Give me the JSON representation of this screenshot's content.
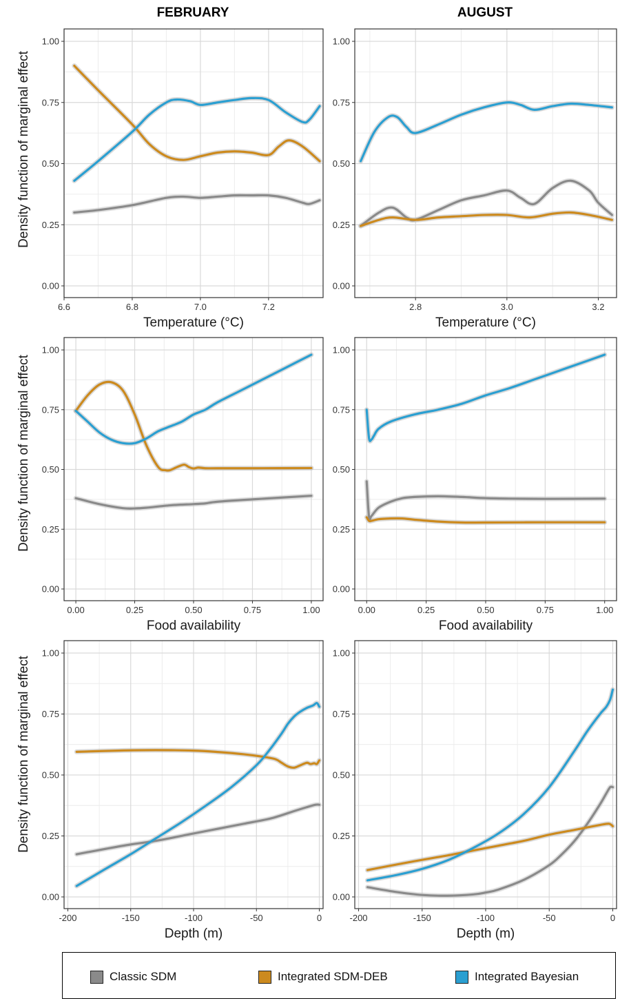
{
  "column_titles": [
    "FEBRUARY",
    "AUGUST"
  ],
  "ylabel": "Density function of marginal effect",
  "legend": [
    {
      "label": "Classic SDM",
      "color": "#8a8a8a",
      "icon": "gray-square"
    },
    {
      "label": "Integrated SDM-DEB",
      "color": "#cc8a1e",
      "icon": "orange-square"
    },
    {
      "label": "Integrated Bayesian",
      "color": "#2b9fd1",
      "icon": "blue-square"
    }
  ],
  "chart_data": [
    {
      "type": "line",
      "panel": "february-temperature",
      "xlabel": "Temperature (°C)",
      "xlim": [
        6.6,
        7.36
      ],
      "ylim": [
        0,
        1
      ],
      "xticks": [
        6.6,
        6.8,
        7.0,
        7.2
      ],
      "xtick_labels": [
        "6.6",
        "6.8",
        "7.0",
        "7.2"
      ],
      "yticks": [
        0,
        0.25,
        0.5,
        0.75,
        1
      ],
      "ytick_labels": [
        "0.00",
        "0.25",
        "0.50",
        "0.75",
        "1.00"
      ],
      "grid": true,
      "series": [
        {
          "name": "Classic SDM",
          "x": [
            6.63,
            6.7,
            6.8,
            6.9,
            6.95,
            7.0,
            7.05,
            7.1,
            7.15,
            7.2,
            7.25,
            7.3,
            7.32,
            7.35
          ],
          "y": [
            0.3,
            0.31,
            0.33,
            0.36,
            0.365,
            0.36,
            0.365,
            0.37,
            0.37,
            0.37,
            0.36,
            0.34,
            0.335,
            0.35
          ]
        },
        {
          "name": "Integrated SDM-DEB",
          "x": [
            6.63,
            6.7,
            6.8,
            6.85,
            6.9,
            6.95,
            7.0,
            7.05,
            7.1,
            7.15,
            7.2,
            7.23,
            7.26,
            7.3,
            7.35
          ],
          "y": [
            0.9,
            0.8,
            0.66,
            0.58,
            0.53,
            0.515,
            0.53,
            0.545,
            0.55,
            0.545,
            0.535,
            0.57,
            0.595,
            0.57,
            0.51
          ]
        },
        {
          "name": "Integrated Bayesian",
          "x": [
            6.63,
            6.7,
            6.8,
            6.85,
            6.9,
            6.93,
            6.97,
            7.0,
            7.05,
            7.1,
            7.15,
            7.2,
            7.25,
            7.3,
            7.32,
            7.35
          ],
          "y": [
            0.43,
            0.51,
            0.63,
            0.7,
            0.75,
            0.762,
            0.755,
            0.74,
            0.75,
            0.76,
            0.768,
            0.76,
            0.71,
            0.67,
            0.68,
            0.735
          ]
        }
      ]
    },
    {
      "type": "line",
      "panel": "august-temperature",
      "xlabel": "Temperature (°C)",
      "xlim": [
        2.667,
        3.24
      ],
      "ylim": [
        0,
        1
      ],
      "xticks": [
        2.8,
        3.0,
        3.2
      ],
      "xtick_labels": [
        "2.8",
        "3.0",
        "3.2"
      ],
      "yticks": [
        0,
        0.25,
        0.5,
        0.75,
        1
      ],
      "ytick_labels": [
        "0.00",
        "0.25",
        "0.50",
        "0.75",
        "1.00"
      ],
      "grid": true,
      "series": [
        {
          "name": "Classic SDM",
          "x": [
            2.68,
            2.72,
            2.75,
            2.78,
            2.8,
            2.85,
            2.9,
            2.95,
            3.0,
            3.03,
            3.06,
            3.1,
            3.14,
            3.18,
            3.2,
            3.23
          ],
          "y": [
            0.245,
            0.3,
            0.32,
            0.28,
            0.27,
            0.31,
            0.35,
            0.37,
            0.39,
            0.36,
            0.335,
            0.4,
            0.43,
            0.39,
            0.34,
            0.29
          ]
        },
        {
          "name": "Integrated SDM-DEB",
          "x": [
            2.68,
            2.72,
            2.75,
            2.8,
            2.85,
            2.9,
            2.95,
            3.0,
            3.05,
            3.1,
            3.14,
            3.18,
            3.23
          ],
          "y": [
            0.245,
            0.27,
            0.28,
            0.27,
            0.28,
            0.285,
            0.29,
            0.29,
            0.28,
            0.295,
            0.3,
            0.29,
            0.27
          ]
        },
        {
          "name": "Integrated Bayesian",
          "x": [
            2.68,
            2.71,
            2.74,
            2.76,
            2.78,
            2.8,
            2.85,
            2.9,
            2.95,
            3.0,
            3.03,
            3.06,
            3.1,
            3.14,
            3.18,
            3.23
          ],
          "y": [
            0.51,
            0.63,
            0.69,
            0.69,
            0.65,
            0.625,
            0.66,
            0.7,
            0.73,
            0.75,
            0.74,
            0.72,
            0.735,
            0.745,
            0.74,
            0.73
          ]
        }
      ]
    },
    {
      "type": "line",
      "panel": "february-food",
      "xlabel": "Food availability",
      "xlim": [
        -0.05,
        1.05
      ],
      "ylim": [
        0,
        1
      ],
      "xticks": [
        0,
        0.25,
        0.5,
        0.75,
        1
      ],
      "xtick_labels": [
        "0.00",
        "0.25",
        "0.50",
        "0.75",
        "1.00"
      ],
      "yticks": [
        0,
        0.25,
        0.5,
        0.75,
        1
      ],
      "ytick_labels": [
        "0.00",
        "0.25",
        "0.50",
        "0.75",
        "1.00"
      ],
      "grid": true,
      "series": [
        {
          "name": "Classic SDM",
          "x": [
            0,
            0.1,
            0.2,
            0.25,
            0.3,
            0.4,
            0.5,
            0.55,
            0.6,
            0.75,
            1.0
          ],
          "y": [
            0.38,
            0.355,
            0.338,
            0.337,
            0.34,
            0.35,
            0.355,
            0.358,
            0.365,
            0.375,
            0.39
          ]
        },
        {
          "name": "Integrated SDM-DEB",
          "x": [
            0,
            0.05,
            0.1,
            0.15,
            0.2,
            0.25,
            0.3,
            0.35,
            0.38,
            0.4,
            0.43,
            0.46,
            0.48,
            0.5,
            0.52,
            0.55,
            0.6,
            0.75,
            1.0
          ],
          "y": [
            0.745,
            0.81,
            0.855,
            0.865,
            0.83,
            0.73,
            0.6,
            0.51,
            0.497,
            0.497,
            0.51,
            0.52,
            0.51,
            0.504,
            0.508,
            0.505,
            0.505,
            0.505,
            0.506
          ]
        },
        {
          "name": "Integrated Bayesian",
          "x": [
            0,
            0.05,
            0.1,
            0.15,
            0.2,
            0.25,
            0.3,
            0.35,
            0.4,
            0.45,
            0.5,
            0.55,
            0.6,
            0.7,
            0.8,
            0.9,
            1.0
          ],
          "y": [
            0.745,
            0.7,
            0.655,
            0.625,
            0.61,
            0.61,
            0.63,
            0.66,
            0.68,
            0.7,
            0.73,
            0.75,
            0.78,
            0.83,
            0.88,
            0.93,
            0.98
          ]
        }
      ]
    },
    {
      "type": "line",
      "panel": "august-food",
      "xlabel": "Food availability",
      "xlim": [
        -0.05,
        1.05
      ],
      "ylim": [
        0,
        1
      ],
      "xticks": [
        0,
        0.25,
        0.5,
        0.75,
        1
      ],
      "xtick_labels": [
        "0.00",
        "0.25",
        "0.50",
        "0.75",
        "1.00"
      ],
      "yticks": [
        0,
        0.25,
        0.5,
        0.75,
        1
      ],
      "ytick_labels": [
        "0.00",
        "0.25",
        "0.50",
        "0.75",
        "1.00"
      ],
      "grid": true,
      "series": [
        {
          "name": "Classic SDM",
          "x": [
            0,
            0.01,
            0.02,
            0.05,
            0.1,
            0.15,
            0.2,
            0.3,
            0.4,
            0.5,
            0.6,
            0.75,
            1.0
          ],
          "y": [
            0.45,
            0.3,
            0.305,
            0.34,
            0.365,
            0.38,
            0.385,
            0.388,
            0.385,
            0.38,
            0.378,
            0.377,
            0.378
          ]
        },
        {
          "name": "Integrated SDM-DEB",
          "x": [
            0,
            0.01,
            0.02,
            0.05,
            0.1,
            0.15,
            0.2,
            0.3,
            0.4,
            0.5,
            0.75,
            1.0
          ],
          "y": [
            0.3,
            0.285,
            0.285,
            0.292,
            0.295,
            0.295,
            0.29,
            0.282,
            0.278,
            0.278,
            0.279,
            0.279
          ]
        },
        {
          "name": "Integrated Bayesian",
          "x": [
            0,
            0.01,
            0.02,
            0.03,
            0.05,
            0.1,
            0.2,
            0.3,
            0.4,
            0.5,
            0.6,
            0.7,
            0.8,
            0.9,
            1.0
          ],
          "y": [
            0.75,
            0.63,
            0.625,
            0.64,
            0.67,
            0.7,
            0.73,
            0.75,
            0.775,
            0.81,
            0.84,
            0.875,
            0.91,
            0.945,
            0.98
          ]
        }
      ]
    },
    {
      "type": "line",
      "panel": "february-depth",
      "xlabel": "Depth (m)",
      "xlim": [
        -203,
        3
      ],
      "ylim": [
        0,
        1
      ],
      "xticks": [
        -200,
        -150,
        -100,
        -50,
        0
      ],
      "xtick_labels": [
        "-200",
        "-150",
        "-100",
        "-50",
        "0"
      ],
      "yticks": [
        0,
        0.25,
        0.5,
        0.75,
        1
      ],
      "ytick_labels": [
        "0.00",
        "0.25",
        "0.50",
        "0.75",
        "1.00"
      ],
      "grid": true,
      "series": [
        {
          "name": "Classic SDM",
          "x": [
            -193,
            -170,
            -150,
            -130,
            -100,
            -80,
            -60,
            -40,
            -30,
            -20,
            -10,
            -3,
            0
          ],
          "y": [
            0.175,
            0.197,
            0.215,
            0.23,
            0.26,
            0.28,
            0.3,
            0.32,
            0.335,
            0.352,
            0.368,
            0.378,
            0.378
          ]
        },
        {
          "name": "Integrated SDM-DEB",
          "x": [
            -193,
            -160,
            -130,
            -100,
            -80,
            -60,
            -45,
            -35,
            -30,
            -25,
            -20,
            -15,
            -10,
            -7,
            -4,
            -2,
            0
          ],
          "y": [
            0.595,
            0.6,
            0.602,
            0.6,
            0.594,
            0.585,
            0.575,
            0.565,
            0.55,
            0.535,
            0.53,
            0.54,
            0.55,
            0.545,
            0.548,
            0.545,
            0.56
          ]
        },
        {
          "name": "Integrated Bayesian",
          "x": [
            -193,
            -170,
            -150,
            -130,
            -110,
            -90,
            -70,
            -50,
            -40,
            -30,
            -25,
            -20,
            -15,
            -10,
            -5,
            -2,
            0
          ],
          "y": [
            0.045,
            0.115,
            0.175,
            0.24,
            0.305,
            0.375,
            0.45,
            0.54,
            0.6,
            0.67,
            0.71,
            0.74,
            0.76,
            0.775,
            0.785,
            0.795,
            0.78
          ]
        }
      ]
    },
    {
      "type": "line",
      "panel": "august-depth",
      "xlabel": "Depth (m)",
      "xlim": [
        -203,
        3
      ],
      "ylim": [
        0,
        1
      ],
      "xticks": [
        -200,
        -150,
        -100,
        -50,
        0
      ],
      "xtick_labels": [
        "-200",
        "-150",
        "-100",
        "-50",
        "0"
      ],
      "yticks": [
        0,
        0.25,
        0.5,
        0.75,
        1
      ],
      "ytick_labels": [
        "0.00",
        "0.25",
        "0.50",
        "0.75",
        "1.00"
      ],
      "grid": true,
      "series": [
        {
          "name": "Classic SDM",
          "x": [
            -193,
            -170,
            -150,
            -130,
            -110,
            -100,
            -90,
            -70,
            -50,
            -40,
            -30,
            -20,
            -10,
            -5,
            -2,
            0
          ],
          "y": [
            0.04,
            0.02,
            0.008,
            0.005,
            0.01,
            0.018,
            0.03,
            0.07,
            0.13,
            0.175,
            0.23,
            0.3,
            0.38,
            0.425,
            0.45,
            0.45
          ]
        },
        {
          "name": "Integrated SDM-DEB",
          "x": [
            -193,
            -170,
            -150,
            -130,
            -110,
            -90,
            -70,
            -50,
            -30,
            -20,
            -10,
            -3,
            0
          ],
          "y": [
            0.11,
            0.133,
            0.152,
            0.17,
            0.19,
            0.21,
            0.23,
            0.255,
            0.275,
            0.285,
            0.295,
            0.3,
            0.29
          ]
        },
        {
          "name": "Integrated Bayesian",
          "x": [
            -193,
            -170,
            -150,
            -130,
            -110,
            -90,
            -70,
            -50,
            -30,
            -20,
            -10,
            -5,
            -2,
            0
          ],
          "y": [
            0.068,
            0.09,
            0.115,
            0.15,
            0.2,
            0.26,
            0.34,
            0.45,
            0.6,
            0.68,
            0.75,
            0.78,
            0.81,
            0.85
          ]
        }
      ]
    }
  ]
}
